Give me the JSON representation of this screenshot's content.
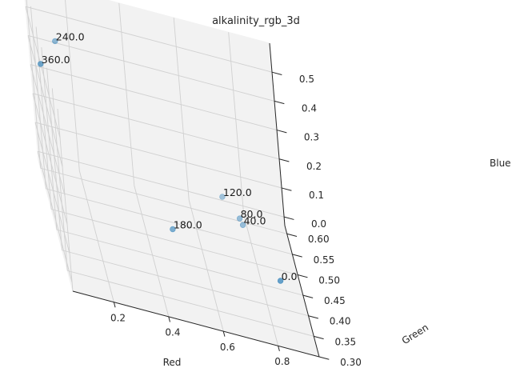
{
  "chart_data": {
    "type": "scatter3d",
    "title": "alkalinity_rgb_3d",
    "xlabel": "Red",
    "ylabel": "Green",
    "zlabel": "Blue",
    "xlim": [
      0.05,
      0.95
    ],
    "ylim": [
      0.3,
      0.62
    ],
    "zlim": [
      -0.03,
      0.6
    ],
    "xticks": [
      "0.2",
      "0.4",
      "0.6",
      "0.8"
    ],
    "yticks": [
      "0.30",
      "0.35",
      "0.40",
      "0.45",
      "0.50",
      "0.55",
      "0.60"
    ],
    "zticks": [
      "0.0",
      "0.1",
      "0.2",
      "0.3",
      "0.4",
      "0.5"
    ],
    "grid": true,
    "point_color": "#1f77b4",
    "points": [
      {
        "label": "0.0",
        "red": 0.87,
        "green": 0.45,
        "blue": 0.0
      },
      {
        "label": "40.0",
        "red": 0.78,
        "green": 0.57,
        "blue": 0.0
      },
      {
        "label": "80.0",
        "red": 0.77,
        "green": 0.57,
        "blue": 0.02
      },
      {
        "label": "120.0",
        "red": 0.72,
        "green": 0.6,
        "blue": 0.04
      },
      {
        "label": "180.0",
        "red": 0.5,
        "green": 0.51,
        "blue": 0.0
      },
      {
        "label": "240.0",
        "red": 0.13,
        "green": 0.55,
        "blue": 0.5
      },
      {
        "label": "360.0",
        "red": 0.05,
        "green": 0.48,
        "blue": 0.5
      }
    ]
  }
}
